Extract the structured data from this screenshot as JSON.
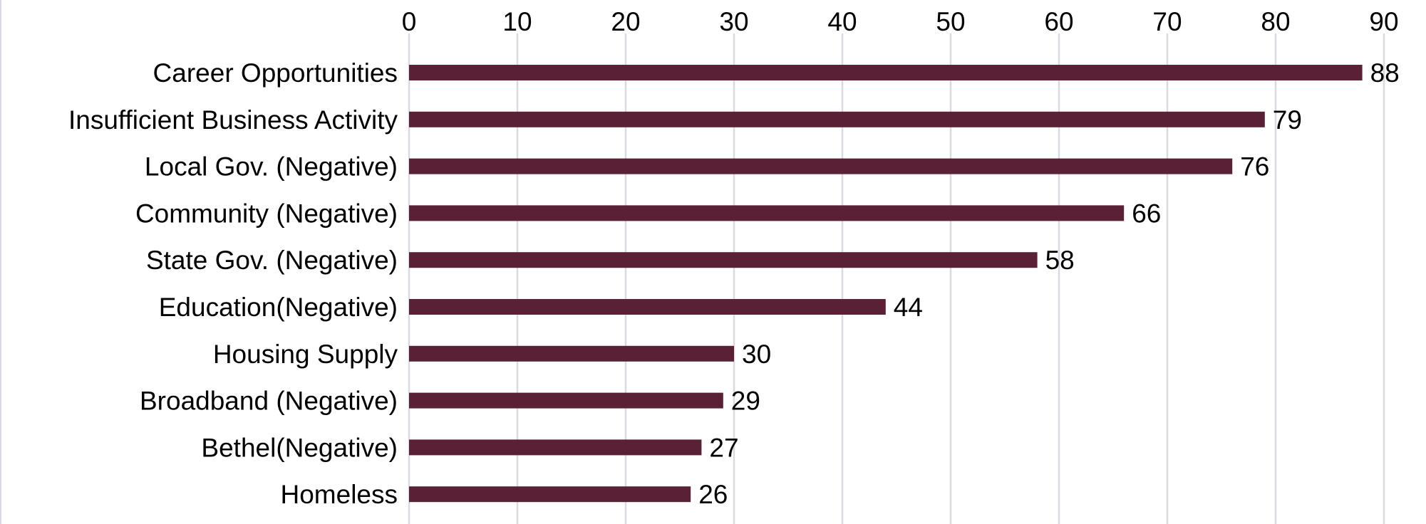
{
  "chart_data": {
    "type": "bar",
    "orientation": "horizontal",
    "title": "",
    "xlabel": "",
    "ylabel": "",
    "categories": [
      "Career Opportunities",
      "Insufficient Business Activity",
      "Local Gov. (Negative)",
      "Community (Negative)",
      "State Gov. (Negative)",
      "Education(Negative)",
      "Housing Supply",
      "Broadband (Negative)",
      "Bethel(Negative)",
      "Homeless"
    ],
    "values": [
      88,
      79,
      76,
      66,
      58,
      44,
      30,
      29,
      27,
      26
    ],
    "xlim": [
      0,
      90
    ],
    "xticks": [
      0,
      10,
      20,
      30,
      40,
      50,
      60,
      70,
      80,
      90
    ],
    "x_axis_position": "top",
    "grid": true,
    "legend": "none",
    "data_labels": true,
    "bar_color": "#5a2035",
    "gridline_color": "#d9d9e3"
  }
}
